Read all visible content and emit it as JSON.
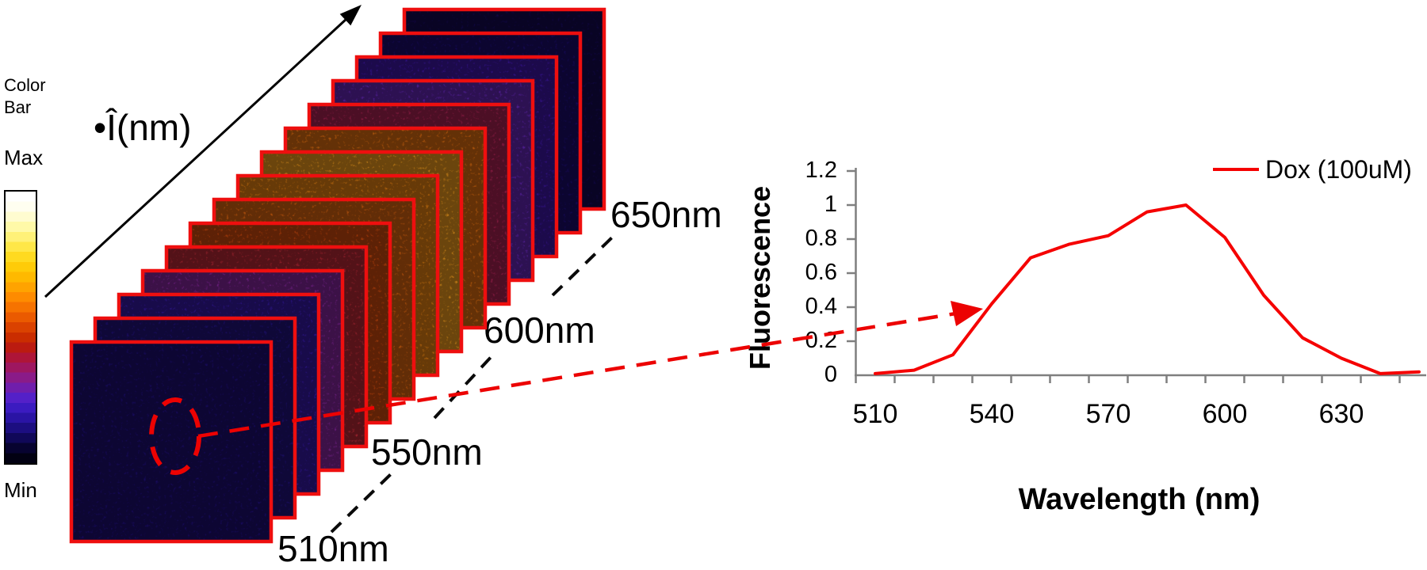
{
  "colorbar": {
    "title_line1": "Color",
    "title_line2": "Bar",
    "max_label": "Max",
    "min_label": "Min",
    "colors": [
      "#ffffff",
      "#fffef0",
      "#fffcd0",
      "#fff9a8",
      "#fff178",
      "#ffe748",
      "#ffda20",
      "#ffcb08",
      "#ffb900",
      "#ffa300",
      "#fe8b00",
      "#f67300",
      "#ea5a00",
      "#da4200",
      "#ca2d00",
      "#bb1b10",
      "#ae1538",
      "#9e1760",
      "#8a1b88",
      "#701eac",
      "#5420c8",
      "#3b1bc0",
      "#2a14a4",
      "#1c0e80",
      "#100858",
      "#070330",
      "#020112"
    ]
  },
  "stack": {
    "axis_label": "•Î(nm)",
    "annotation_color": "#ec0202",
    "frame_border_color": "#ee0f0f",
    "wavelength_labels": [
      "510nm",
      "550nm",
      "600nm",
      "650nm"
    ],
    "frames": [
      {
        "wavelength_nm": 510,
        "color": "#1e0e7a"
      },
      {
        "wavelength_nm": 520,
        "color": "#241285"
      },
      {
        "wavelength_nm": 530,
        "color": "#3a1bb0"
      },
      {
        "wavelength_nm": 540,
        "color": "#8f28a8"
      },
      {
        "wavelength_nm": 550,
        "color": "#c52b3a"
      },
      {
        "wavelength_nm": 560,
        "color": "#dd4e0e"
      },
      {
        "wavelength_nm": 570,
        "color": "#ea6a10"
      },
      {
        "wavelength_nm": 580,
        "color": "#f58a14"
      },
      {
        "wavelength_nm": 590,
        "color": "#ffa41e"
      },
      {
        "wavelength_nm": 600,
        "color": "#ee7511"
      },
      {
        "wavelength_nm": 610,
        "color": "#b42457"
      },
      {
        "wavelength_nm": 620,
        "color": "#6a28c4"
      },
      {
        "wavelength_nm": 630,
        "color": "#4318b2"
      },
      {
        "wavelength_nm": 640,
        "color": "#1c0d72"
      },
      {
        "wavelength_nm": 650,
        "color": "#150955"
      }
    ]
  },
  "chart_data": {
    "type": "line",
    "title": "",
    "xlabel": "Wavelength (nm)",
    "ylabel": "Fluorescence",
    "x": [
      510,
      520,
      530,
      540,
      550,
      560,
      570,
      580,
      590,
      600,
      610,
      620,
      630,
      640,
      650
    ],
    "series": [
      {
        "name": "Dox (100uM)",
        "color": "#f50000",
        "values": [
          0.01,
          0.03,
          0.12,
          0.42,
          0.69,
          0.77,
          0.82,
          0.96,
          1.0,
          0.81,
          0.47,
          0.22,
          0.1,
          0.01,
          0.02
        ]
      }
    ],
    "x_ticklabels": [
      "510",
      "540",
      "570",
      "600",
      "630"
    ],
    "y_ticklabels": [
      "1.2",
      "1",
      "0.8",
      "0.6",
      "0.4",
      "0.2",
      "0"
    ],
    "ylim": [
      0,
      1.2
    ],
    "grid": false,
    "legend_position": "top-right",
    "axis_color": "#7f7f7f"
  }
}
